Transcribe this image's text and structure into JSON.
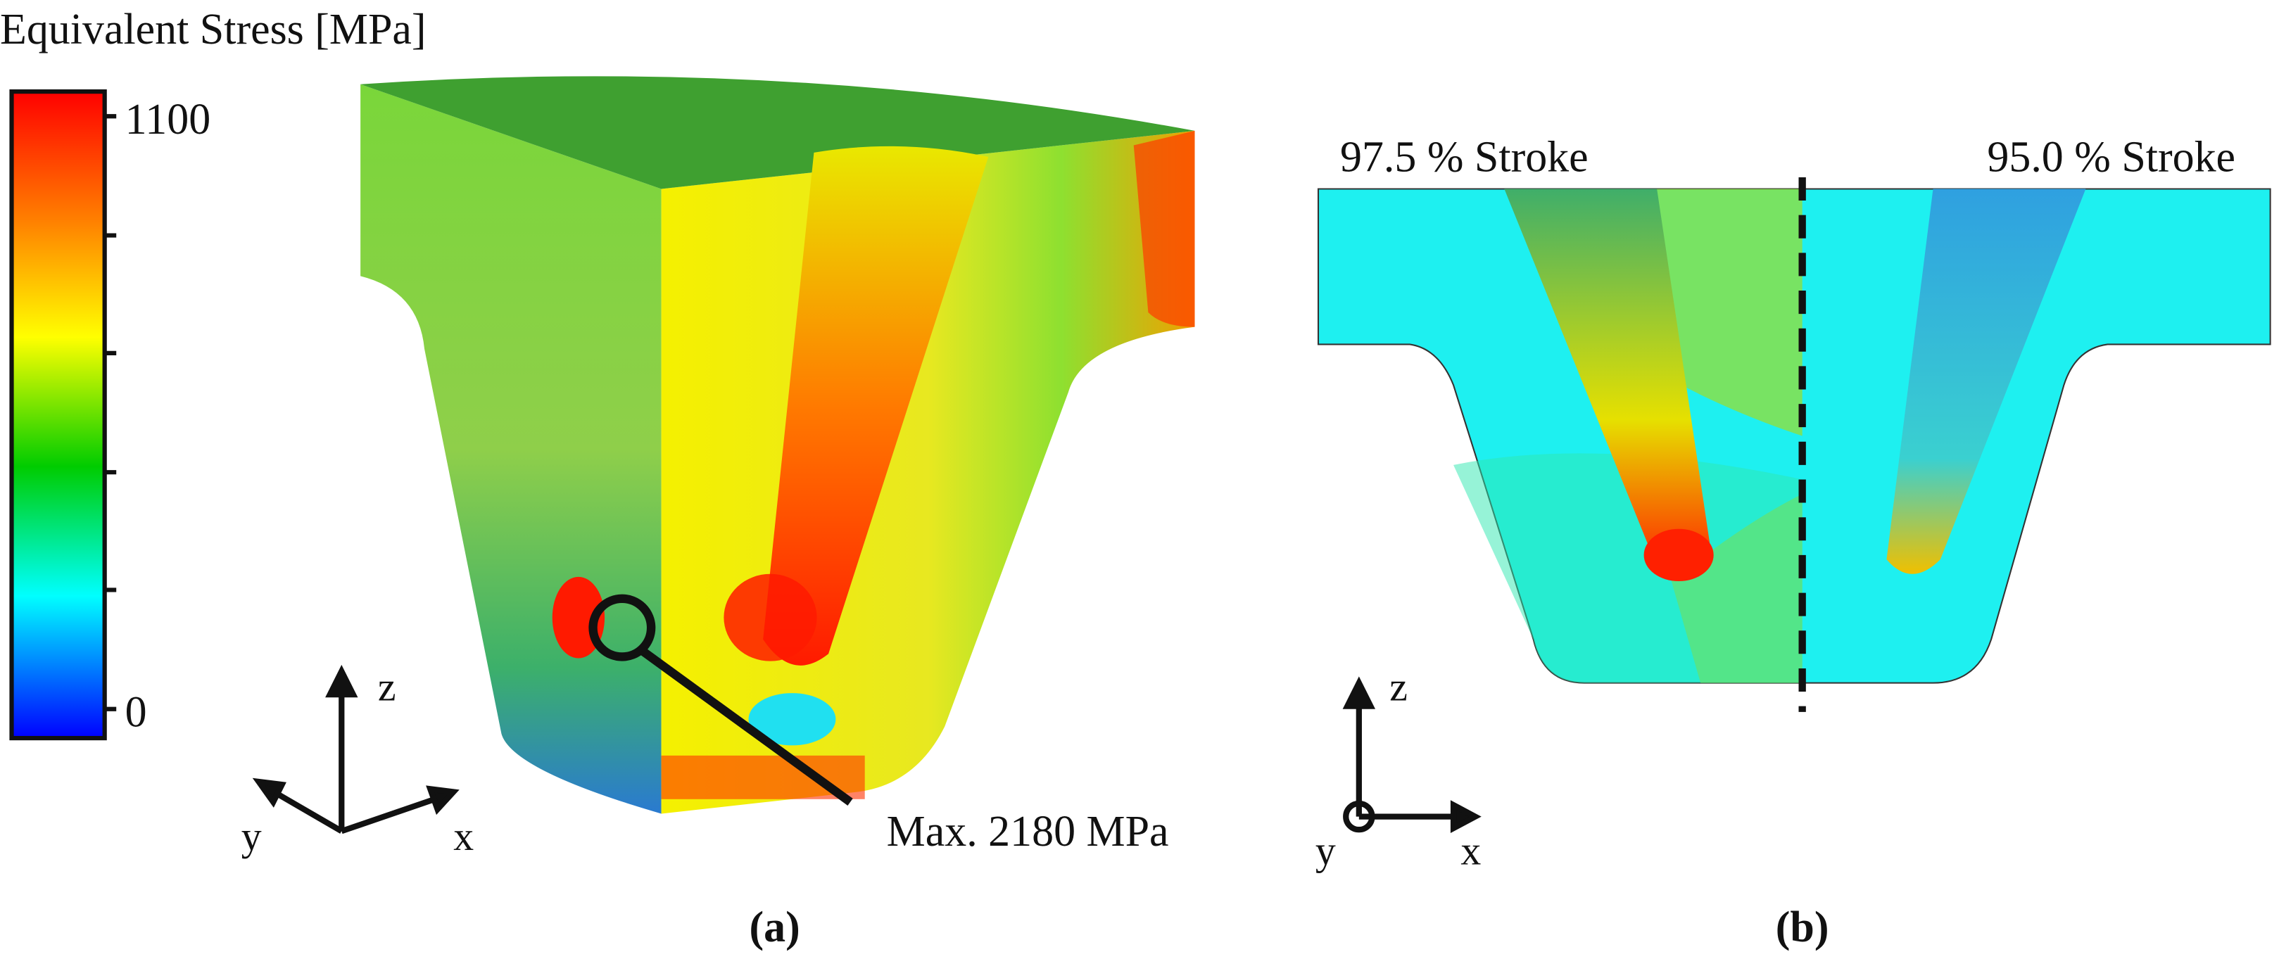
{
  "legend": {
    "title": "Equivalent Stress [MPa]",
    "max_label": "1100",
    "min_label": "0"
  },
  "panel_a": {
    "annotation": "Max. 2180 MPa",
    "axis_z": "z",
    "axis_y": "y",
    "axis_x": "x",
    "caption": "(a)"
  },
  "panel_b": {
    "left_label": "97.5 % Stroke",
    "right_label": "95.0 % Stroke",
    "axis_z": "z",
    "axis_y": "y",
    "axis_x": "x",
    "caption": "(b)"
  }
}
